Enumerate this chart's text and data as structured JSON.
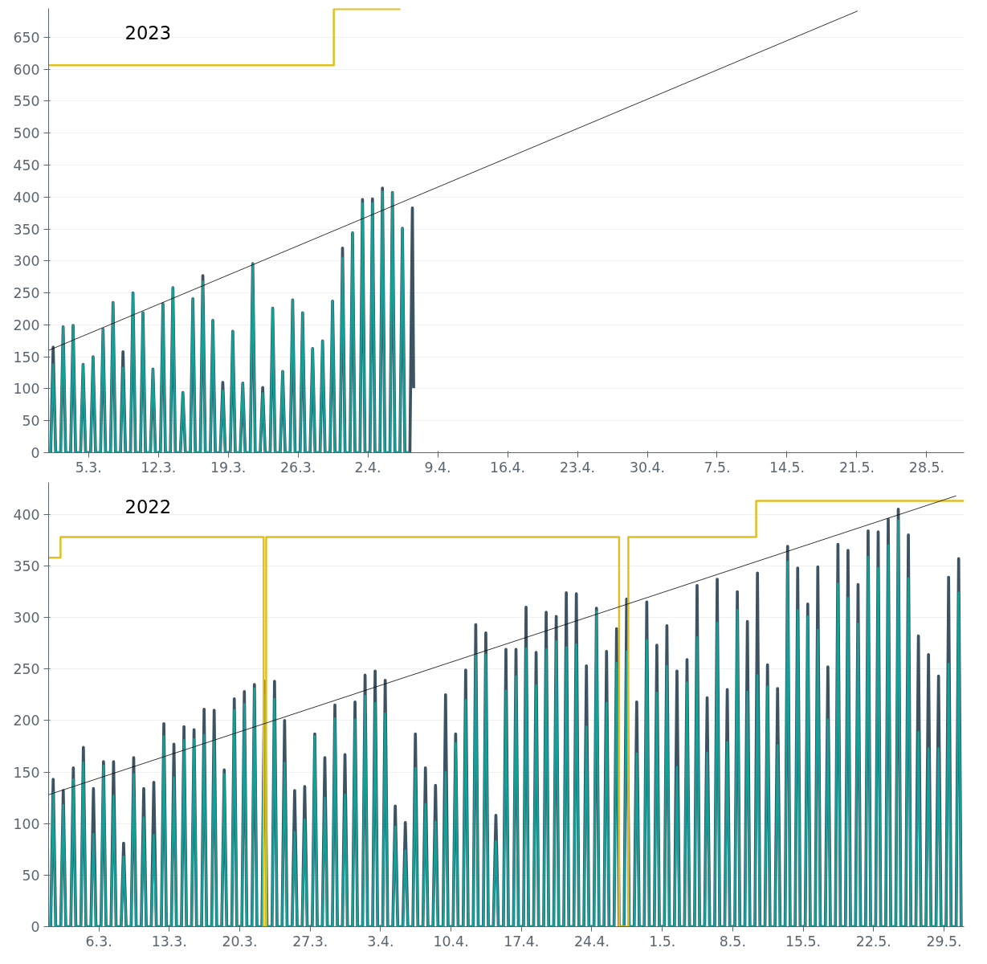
{
  "chart_data": [
    {
      "type": "line",
      "title": "2023",
      "grid": "y",
      "xlim": [
        "2023-03-01",
        "2023-05-31T18:00"
      ],
      "ylim": [
        0,
        695
      ],
      "xticks": [
        {
          "value": "2023-03-05",
          "label": "5.3."
        },
        {
          "value": "2023-03-12",
          "label": "12.3."
        },
        {
          "value": "2023-03-19",
          "label": "19.3."
        },
        {
          "value": "2023-03-26",
          "label": "26.3."
        },
        {
          "value": "2023-04-02",
          "label": "2.4."
        },
        {
          "value": "2023-04-09",
          "label": "9.4."
        },
        {
          "value": "2023-04-16",
          "label": "16.4."
        },
        {
          "value": "2023-04-23",
          "label": "23.4."
        },
        {
          "value": "2023-04-30",
          "label": "30.4."
        },
        {
          "value": "2023-05-07",
          "label": "7.5."
        },
        {
          "value": "2023-05-14",
          "label": "14.5."
        },
        {
          "value": "2023-05-21",
          "label": "21.5."
        },
        {
          "value": "2023-05-28",
          "label": "28.5."
        }
      ],
      "yticks": [
        0,
        50,
        100,
        150,
        200,
        250,
        300,
        350,
        400,
        450,
        500,
        550,
        600,
        650
      ],
      "x": [
        "2023-03-01T05:00",
        "2023-03-01T11:00",
        "2023-03-01T17:00",
        "2023-03-02T05:00",
        "2023-03-02T11:00",
        "2023-03-02T17:00",
        "2023-03-03T05:00",
        "2023-03-03T11:00",
        "2023-03-03T17:00",
        "2023-03-04T05:00",
        "2023-03-04T11:00",
        "2023-03-04T17:00",
        "2023-03-05T05:00",
        "2023-03-05T11:00",
        "2023-03-05T17:00",
        "2023-03-06T05:00",
        "2023-03-06T11:00",
        "2023-03-06T17:00",
        "2023-03-07T05:00",
        "2023-03-07T11:00",
        "2023-03-07T17:00",
        "2023-03-08T05:00",
        "2023-03-08T11:00",
        "2023-03-08T17:00",
        "2023-03-09T05:00",
        "2023-03-09T11:00",
        "2023-03-09T17:00",
        "2023-03-10T05:00",
        "2023-03-10T11:00",
        "2023-03-10T17:00",
        "2023-03-11T05:00",
        "2023-03-11T11:00",
        "2023-03-11T17:00",
        "2023-03-12T05:00",
        "2023-03-12T11:00",
        "2023-03-12T17:00",
        "2023-03-13T05:00",
        "2023-03-13T11:00",
        "2023-03-13T17:00",
        "2023-03-14T05:00",
        "2023-03-14T11:00",
        "2023-03-14T17:00",
        "2023-03-15T05:00",
        "2023-03-15T11:00",
        "2023-03-15T17:00",
        "2023-03-16T05:00",
        "2023-03-16T11:00",
        "2023-03-16T17:00",
        "2023-03-17T05:00",
        "2023-03-17T11:00",
        "2023-03-17T17:00",
        "2023-03-18T05:00",
        "2023-03-18T11:00",
        "2023-03-18T17:00",
        "2023-03-19T05:00",
        "2023-03-19T11:00",
        "2023-03-19T17:00",
        "2023-03-20T05:00",
        "2023-03-20T11:00",
        "2023-03-20T17:00",
        "2023-03-21T05:00",
        "2023-03-21T11:00",
        "2023-03-21T17:00",
        "2023-03-22T05:00",
        "2023-03-22T11:00",
        "2023-03-22T17:00",
        "2023-03-23T05:00",
        "2023-03-23T11:00",
        "2023-03-23T17:00",
        "2023-03-24T05:00",
        "2023-03-24T11:00",
        "2023-03-24T17:00",
        "2023-03-25T05:00",
        "2023-03-25T11:00",
        "2023-03-25T17:00",
        "2023-03-26T05:00",
        "2023-03-26T11:00",
        "2023-03-26T17:00",
        "2023-03-27T05:00",
        "2023-03-27T11:00",
        "2023-03-27T17:00",
        "2023-03-28T05:00",
        "2023-03-28T11:00",
        "2023-03-28T17:00",
        "2023-03-29T05:00",
        "2023-03-29T11:00",
        "2023-03-29T17:00",
        "2023-03-30T05:00",
        "2023-03-30T11:00",
        "2023-03-30T17:00",
        "2023-03-31T05:00",
        "2023-03-31T11:00",
        "2023-03-31T17:00",
        "2023-04-01T05:00",
        "2023-04-01T11:00",
        "2023-04-01T17:00",
        "2023-04-02T05:00",
        "2023-04-02T11:00",
        "2023-04-02T17:00",
        "2023-04-03T05:00",
        "2023-04-03T11:00",
        "2023-04-03T17:00",
        "2023-04-04T05:00",
        "2023-04-04T11:00",
        "2023-04-04T17:00",
        "2023-04-05T05:00",
        "2023-04-05T11:00",
        "2023-04-05T17:00",
        "2023-04-06T05:00",
        "2023-04-06T11:00",
        "2023-04-06T14:00"
      ],
      "series": [
        {
          "color": "#3d5361",
          "values": [
            0,
            165,
            0,
            0,
            197,
            0,
            0,
            199,
            0,
            0,
            138,
            0,
            0,
            150,
            0,
            0,
            193,
            0,
            0,
            235,
            0,
            0,
            158,
            0,
            0,
            250,
            0,
            0,
            219,
            0,
            0,
            131,
            0,
            0,
            233,
            0,
            0,
            258,
            0,
            0,
            94,
            0,
            0,
            241,
            0,
            0,
            277,
            0,
            0,
            207,
            0,
            0,
            110,
            0,
            0,
            190,
            0,
            0,
            109,
            0,
            0,
            296,
            0,
            0,
            102,
            0,
            0,
            226,
            0,
            0,
            127,
            0,
            0,
            239,
            0,
            0,
            219,
            0,
            0,
            163,
            0,
            0,
            175,
            0,
            0,
            237,
            0,
            0,
            320,
            0,
            0,
            344,
            0,
            0,
            396,
            0,
            0,
            397,
            0,
            0,
            414,
            0,
            0,
            407,
            0,
            0,
            351,
            0,
            0,
            383,
            101
          ]
        },
        {
          "color": "#14a098",
          "values": [
            0,
            138,
            0,
            0,
            197,
            0,
            0,
            199,
            0,
            0,
            138,
            0,
            0,
            150,
            0,
            0,
            193,
            0,
            0,
            235,
            0,
            0,
            133,
            0,
            0,
            250,
            0,
            0,
            219,
            0,
            0,
            131,
            0,
            0,
            233,
            0,
            0,
            258,
            0,
            0,
            94,
            0,
            0,
            241,
            0,
            0,
            268,
            0,
            0,
            207,
            0,
            0,
            97,
            0,
            0,
            190,
            0,
            0,
            109,
            0,
            0,
            296,
            0,
            0,
            93,
            0,
            0,
            226,
            0,
            0,
            127,
            0,
            0,
            239,
            0,
            0,
            219,
            0,
            0,
            163,
            0,
            0,
            175,
            0,
            0,
            237,
            0,
            0,
            305,
            0,
            0,
            344,
            0,
            0,
            390,
            0,
            0,
            390,
            0,
            0,
            408,
            0,
            0,
            407,
            0,
            0,
            351,
            0,
            0,
            null,
            null
          ]
        },
        {
          "type": "step",
          "color": "#e0c020",
          "x": [
            "2023-03-01",
            "2023-03-29T14:00",
            "2023-04-05T06:00"
          ],
          "values": [
            606,
            694,
            694
          ]
        },
        {
          "type": "line",
          "color": "#000000",
          "x": [
            "2023-03-01",
            "2023-05-21T02:00"
          ],
          "values": [
            160,
            691
          ]
        }
      ]
    },
    {
      "type": "line",
      "title": "2022",
      "grid": "y",
      "xlim": [
        "2022-03-01",
        "2022-05-31"
      ],
      "ylim": [
        0,
        431
      ],
      "xticks": [
        {
          "value": "2022-03-06",
          "label": "6.3."
        },
        {
          "value": "2022-03-13",
          "label": "13.3."
        },
        {
          "value": "2022-03-20",
          "label": "20.3."
        },
        {
          "value": "2022-03-27",
          "label": "27.3."
        },
        {
          "value": "2022-04-03",
          "label": "3.4."
        },
        {
          "value": "2022-04-10",
          "label": "10.4."
        },
        {
          "value": "2022-04-17",
          "label": "17.4."
        },
        {
          "value": "2022-04-24",
          "label": "24.4."
        },
        {
          "value": "2022-05-01",
          "label": "1.5."
        },
        {
          "value": "2022-05-08",
          "label": "8.5."
        },
        {
          "value": "2022-05-15",
          "label": "15.5."
        },
        {
          "value": "2022-05-22",
          "label": "22.5."
        },
        {
          "value": "2022-05-29",
          "label": "29.5."
        }
      ],
      "yticks": [
        0,
        50,
        100,
        150,
        200,
        250,
        300,
        350,
        400
      ],
      "x": [
        "2022-03-01T05:00",
        "2022-03-01T11:00",
        "2022-03-01T17:00",
        "2022-03-02T05:00",
        "2022-03-02T11:00",
        "2022-03-02T17:00",
        "2022-03-03T05:00",
        "2022-03-03T11:00",
        "2022-03-03T17:00",
        "2022-03-04T05:00",
        "2022-03-04T11:00",
        "2022-03-04T17:00",
        "2022-03-05T05:00",
        "2022-03-05T11:00",
        "2022-03-05T17:00",
        "2022-03-06T05:00",
        "2022-03-06T11:00",
        "2022-03-06T17:00",
        "2022-03-07T05:00",
        "2022-03-07T11:00",
        "2022-03-07T17:00",
        "2022-03-08T05:00",
        "2022-03-08T11:00",
        "2022-03-08T17:00",
        "2022-03-09T05:00",
        "2022-03-09T11:00",
        "2022-03-09T17:00",
        "2022-03-10T05:00",
        "2022-03-10T11:00",
        "2022-03-10T17:00",
        "2022-03-11T05:00",
        "2022-03-11T11:00",
        "2022-03-11T17:00",
        "2022-03-12T05:00",
        "2022-03-12T11:00",
        "2022-03-12T17:00",
        "2022-03-13T05:00",
        "2022-03-13T11:00",
        "2022-03-13T17:00",
        "2022-03-14T05:00",
        "2022-03-14T11:00",
        "2022-03-14T17:00",
        "2022-03-15T05:00",
        "2022-03-15T11:00",
        "2022-03-15T17:00",
        "2022-03-16T05:00",
        "2022-03-16T11:00",
        "2022-03-16T17:00",
        "2022-03-17T05:00",
        "2022-03-17T11:00",
        "2022-03-17T17:00",
        "2022-03-18T05:00",
        "2022-03-18T11:00",
        "2022-03-18T17:00",
        "2022-03-19T05:00",
        "2022-03-19T11:00",
        "2022-03-19T17:00",
        "2022-03-20T05:00",
        "2022-03-20T11:00",
        "2022-03-20T17:00",
        "2022-03-21T05:00",
        "2022-03-21T11:00",
        "2022-03-21T17:00",
        "2022-03-22T05:00",
        "2022-03-22T11:00",
        "2022-03-22T17:00",
        "2022-03-23T05:00",
        "2022-03-23T11:00",
        "2022-03-23T17:00",
        "2022-03-24T05:00",
        "2022-03-24T11:00",
        "2022-03-24T17:00",
        "2022-03-25T05:00",
        "2022-03-25T11:00",
        "2022-03-25T17:00",
        "2022-03-26T05:00",
        "2022-03-26T11:00",
        "2022-03-26T17:00",
        "2022-03-27T05:00",
        "2022-03-27T11:00",
        "2022-03-27T17:00",
        "2022-03-28T05:00",
        "2022-03-28T11:00",
        "2022-03-28T17:00",
        "2022-03-29T05:00",
        "2022-03-29T11:00",
        "2022-03-29T17:00",
        "2022-03-30T05:00",
        "2022-03-30T11:00",
        "2022-03-30T17:00",
        "2022-03-31T05:00",
        "2022-03-31T11:00",
        "2022-03-31T17:00",
        "2022-04-01T05:00",
        "2022-04-01T11:00",
        "2022-04-01T17:00",
        "2022-04-02T05:00",
        "2022-04-02T11:00",
        "2022-04-02T17:00",
        "2022-04-03T05:00",
        "2022-04-03T11:00",
        "2022-04-03T17:00",
        "2022-04-04T05:00",
        "2022-04-04T11:00",
        "2022-04-04T17:00",
        "2022-04-05T05:00",
        "2022-04-05T11:00",
        "2022-04-05T17:00",
        "2022-04-06T05:00",
        "2022-04-06T11:00",
        "2022-04-06T17:00",
        "2022-04-07T05:00",
        "2022-04-07T11:00",
        "2022-04-07T17:00",
        "2022-04-08T05:00",
        "2022-04-08T11:00",
        "2022-04-08T17:00",
        "2022-04-09T05:00",
        "2022-04-09T11:00",
        "2022-04-09T17:00",
        "2022-04-10T05:00",
        "2022-04-10T11:00",
        "2022-04-10T17:00",
        "2022-04-11T05:00",
        "2022-04-11T11:00",
        "2022-04-11T17:00",
        "2022-04-12T05:00",
        "2022-04-12T11:00",
        "2022-04-12T17:00",
        "2022-04-13T05:00",
        "2022-04-13T11:00",
        "2022-04-13T17:00",
        "2022-04-14T05:00",
        "2022-04-14T11:00",
        "2022-04-14T17:00",
        "2022-04-15T05:00",
        "2022-04-15T11:00",
        "2022-04-15T17:00",
        "2022-04-16T05:00",
        "2022-04-16T11:00",
        "2022-04-16T17:00",
        "2022-04-17T05:00",
        "2022-04-17T11:00",
        "2022-04-17T17:00",
        "2022-04-18T05:00",
        "2022-04-18T11:00",
        "2022-04-18T17:00",
        "2022-04-19T05:00",
        "2022-04-19T11:00",
        "2022-04-19T17:00",
        "2022-04-20T05:00",
        "2022-04-20T11:00",
        "2022-04-20T17:00",
        "2022-04-21T05:00",
        "2022-04-21T11:00",
        "2022-04-21T17:00",
        "2022-04-22T05:00",
        "2022-04-22T11:00",
        "2022-04-22T17:00",
        "2022-04-23T05:00",
        "2022-04-23T11:00",
        "2022-04-23T17:00",
        "2022-04-24T05:00",
        "2022-04-24T11:00",
        "2022-04-24T17:00",
        "2022-04-25T05:00",
        "2022-04-25T11:00",
        "2022-04-25T17:00",
        "2022-04-26T05:00",
        "2022-04-26T11:00",
        "2022-04-26T17:00",
        "2022-04-27T05:00",
        "2022-04-27T11:00",
        "2022-04-27T17:00",
        "2022-04-28T05:00",
        "2022-04-28T11:00",
        "2022-04-28T17:00",
        "2022-04-29T05:00",
        "2022-04-29T11:00",
        "2022-04-29T17:00",
        "2022-04-30T05:00",
        "2022-04-30T11:00",
        "2022-04-30T17:00",
        "2022-05-01T05:00",
        "2022-05-01T11:00",
        "2022-05-01T17:00",
        "2022-05-02T05:00",
        "2022-05-02T11:00",
        "2022-05-02T17:00",
        "2022-05-03T05:00",
        "2022-05-03T11:00",
        "2022-05-03T17:00",
        "2022-05-04T05:00",
        "2022-05-04T11:00",
        "2022-05-04T17:00",
        "2022-05-05T05:00",
        "2022-05-05T11:00",
        "2022-05-05T17:00",
        "2022-05-06T05:00",
        "2022-05-06T11:00",
        "2022-05-06T17:00",
        "2022-05-07T05:00",
        "2022-05-07T11:00",
        "2022-05-07T17:00",
        "2022-05-08T05:00",
        "2022-05-08T11:00",
        "2022-05-08T17:00",
        "2022-05-09T05:00",
        "2022-05-09T11:00",
        "2022-05-09T17:00",
        "2022-05-10T05:00",
        "2022-05-10T11:00",
        "2022-05-10T17:00",
        "2022-05-11T05:00",
        "2022-05-11T11:00",
        "2022-05-11T17:00",
        "2022-05-12T05:00",
        "2022-05-12T11:00",
        "2022-05-12T17:00",
        "2022-05-13T05:00",
        "2022-05-13T11:00",
        "2022-05-13T17:00",
        "2022-05-14T05:00",
        "2022-05-14T11:00",
        "2022-05-14T17:00",
        "2022-05-15T05:00",
        "2022-05-15T11:00",
        "2022-05-15T17:00",
        "2022-05-16T05:00",
        "2022-05-16T11:00",
        "2022-05-16T17:00",
        "2022-05-17T05:00",
        "2022-05-17T11:00",
        "2022-05-17T17:00",
        "2022-05-18T05:00",
        "2022-05-18T11:00",
        "2022-05-18T17:00",
        "2022-05-19T05:00",
        "2022-05-19T11:00",
        "2022-05-19T17:00",
        "2022-05-20T05:00",
        "2022-05-20T11:00",
        "2022-05-20T17:00",
        "2022-05-21T05:00",
        "2022-05-21T11:00",
        "2022-05-21T17:00",
        "2022-05-22T05:00",
        "2022-05-22T11:00",
        "2022-05-22T17:00",
        "2022-05-23T05:00",
        "2022-05-23T11:00",
        "2022-05-23T17:00",
        "2022-05-24T05:00",
        "2022-05-24T11:00",
        "2022-05-24T17:00",
        "2022-05-25T05:00",
        "2022-05-25T11:00",
        "2022-05-25T17:00",
        "2022-05-26T05:00",
        "2022-05-26T11:00",
        "2022-05-26T17:00",
        "2022-05-27T05:00",
        "2022-05-27T11:00",
        "2022-05-27T17:00",
        "2022-05-28T05:00",
        "2022-05-28T11:00",
        "2022-05-28T17:00",
        "2022-05-29T05:00",
        "2022-05-29T11:00",
        "2022-05-29T17:00",
        "2022-05-30T05:00",
        "2022-05-30T11:00",
        "2022-05-30T17:00"
      ],
      "series": [
        {
          "color": "#3d5361",
          "values": [
            0,
            143,
            0,
            0,
            132,
            0,
            0,
            154,
            0,
            0,
            174,
            0,
            0,
            134,
            0,
            0,
            160,
            0,
            0,
            160,
            0,
            0,
            81,
            0,
            0,
            164,
            0,
            0,
            134,
            0,
            0,
            140,
            0,
            0,
            197,
            0,
            0,
            177,
            0,
            0,
            194,
            0,
            0,
            191,
            0,
            0,
            211,
            0,
            0,
            210,
            0,
            0,
            152,
            0,
            0,
            221,
            0,
            0,
            228,
            0,
            0,
            235,
            0,
            0,
            238,
            0,
            0,
            238,
            0,
            0,
            200,
            0,
            0,
            132,
            0,
            0,
            136,
            0,
            0,
            187,
            0,
            0,
            164,
            0,
            0,
            215,
            0,
            0,
            167,
            0,
            0,
            218,
            0,
            0,
            244,
            0,
            0,
            248,
            0,
            0,
            239,
            0,
            0,
            117,
            0,
            0,
            101,
            0,
            0,
            187,
            0,
            0,
            154,
            0,
            0,
            137,
            0,
            0,
            225,
            0,
            0,
            187,
            0,
            0,
            249,
            0,
            0,
            293,
            0,
            0,
            285,
            0,
            0,
            108,
            0,
            0,
            269,
            0,
            0,
            269,
            0,
            0,
            310,
            0,
            0,
            266,
            0,
            0,
            305,
            0,
            0,
            301,
            0,
            0,
            324,
            0,
            0,
            323,
            0,
            0,
            253,
            0,
            0,
            309,
            0,
            0,
            267,
            0,
            0,
            289,
            0,
            0,
            318,
            0,
            0,
            218,
            0,
            0,
            315,
            0,
            0,
            273,
            0,
            0,
            292,
            0,
            0,
            248,
            0,
            0,
            259,
            0,
            0,
            331,
            0,
            0,
            222,
            0,
            0,
            337,
            0,
            0,
            230,
            0,
            0,
            325,
            0,
            0,
            296,
            0,
            0,
            343,
            0,
            0,
            254,
            0,
            0,
            231,
            0,
            0,
            369,
            0,
            0,
            348,
            0,
            0,
            313,
            0,
            0,
            349,
            0,
            0,
            252,
            0,
            0,
            371,
            0,
            0,
            365,
            0,
            0,
            332,
            0,
            0,
            384,
            0,
            0,
            383,
            0,
            0,
            395,
            0,
            0,
            405,
            0,
            0,
            380,
            0,
            0,
            282,
            0,
            0,
            264,
            0,
            0,
            243,
            0,
            0,
            339,
            0,
            0,
            357,
            0
          ]
        },
        {
          "color": "#14a098",
          "values": [
            0,
            130,
            0,
            0,
            118,
            0,
            0,
            143,
            0,
            0,
            159,
            0,
            0,
            90,
            0,
            0,
            156,
            0,
            0,
            127,
            0,
            0,
            68,
            0,
            0,
            148,
            0,
            0,
            106,
            0,
            0,
            89,
            0,
            0,
            185,
            0,
            0,
            145,
            0,
            0,
            181,
            0,
            0,
            182,
            0,
            0,
            186,
            0,
            0,
            181,
            0,
            0,
            148,
            0,
            0,
            210,
            0,
            0,
            216,
            0,
            0,
            231,
            0,
            0,
            225,
            0,
            0,
            221,
            0,
            0,
            159,
            0,
            0,
            92,
            0,
            0,
            104,
            0,
            0,
            185,
            0,
            0,
            125,
            0,
            0,
            202,
            0,
            0,
            128,
            0,
            0,
            201,
            0,
            0,
            224,
            0,
            0,
            217,
            0,
            0,
            207,
            0,
            0,
            97,
            0,
            0,
            74,
            0,
            0,
            154,
            0,
            0,
            119,
            0,
            0,
            102,
            0,
            0,
            150,
            0,
            0,
            178,
            0,
            0,
            220,
            0,
            0,
            264,
            0,
            0,
            264,
            0,
            0,
            83,
            0,
            0,
            229,
            0,
            0,
            243,
            0,
            0,
            270,
            0,
            0,
            234,
            0,
            0,
            269,
            0,
            0,
            277,
            0,
            0,
            271,
            0,
            0,
            274,
            0,
            0,
            194,
            0,
            0,
            306,
            0,
            0,
            217,
            0,
            0,
            256,
            0,
            0,
            267,
            0,
            0,
            168,
            0,
            0,
            278,
            0,
            0,
            227,
            0,
            0,
            253,
            0,
            0,
            155,
            0,
            0,
            237,
            0,
            0,
            281,
            0,
            0,
            169,
            0,
            0,
            295,
            0,
            0,
            179,
            0,
            0,
            307,
            0,
            0,
            228,
            0,
            0,
            244,
            0,
            0,
            233,
            0,
            0,
            176,
            0,
            0,
            354,
            0,
            0,
            307,
            0,
            0,
            301,
            0,
            0,
            288,
            0,
            0,
            201,
            0,
            0,
            333,
            0,
            0,
            319,
            0,
            0,
            294,
            0,
            0,
            359,
            0,
            0,
            348,
            0,
            0,
            370,
            0,
            0,
            394,
            0,
            0,
            338,
            0,
            0,
            189,
            0,
            0,
            173,
            0,
            0,
            173,
            0,
            0,
            255,
            0,
            0,
            324,
            0
          ]
        },
        {
          "type": "step",
          "color": "#e0c020",
          "x": [
            "2022-03-01",
            "2022-03-02T04:30",
            "2022-03-22T09:00",
            "2022-03-22T15:00",
            "2022-04-26T17:00",
            "2022-04-27T15:00",
            "2022-05-10T08:00",
            "2022-05-31"
          ],
          "values": [
            358,
            378,
            0,
            378,
            0,
            378,
            413,
            413
          ]
        },
        {
          "type": "line",
          "color": "#000000",
          "x": [
            "2022-03-01",
            "2022-05-30T05:00"
          ],
          "values": [
            128,
            418
          ]
        }
      ]
    }
  ]
}
